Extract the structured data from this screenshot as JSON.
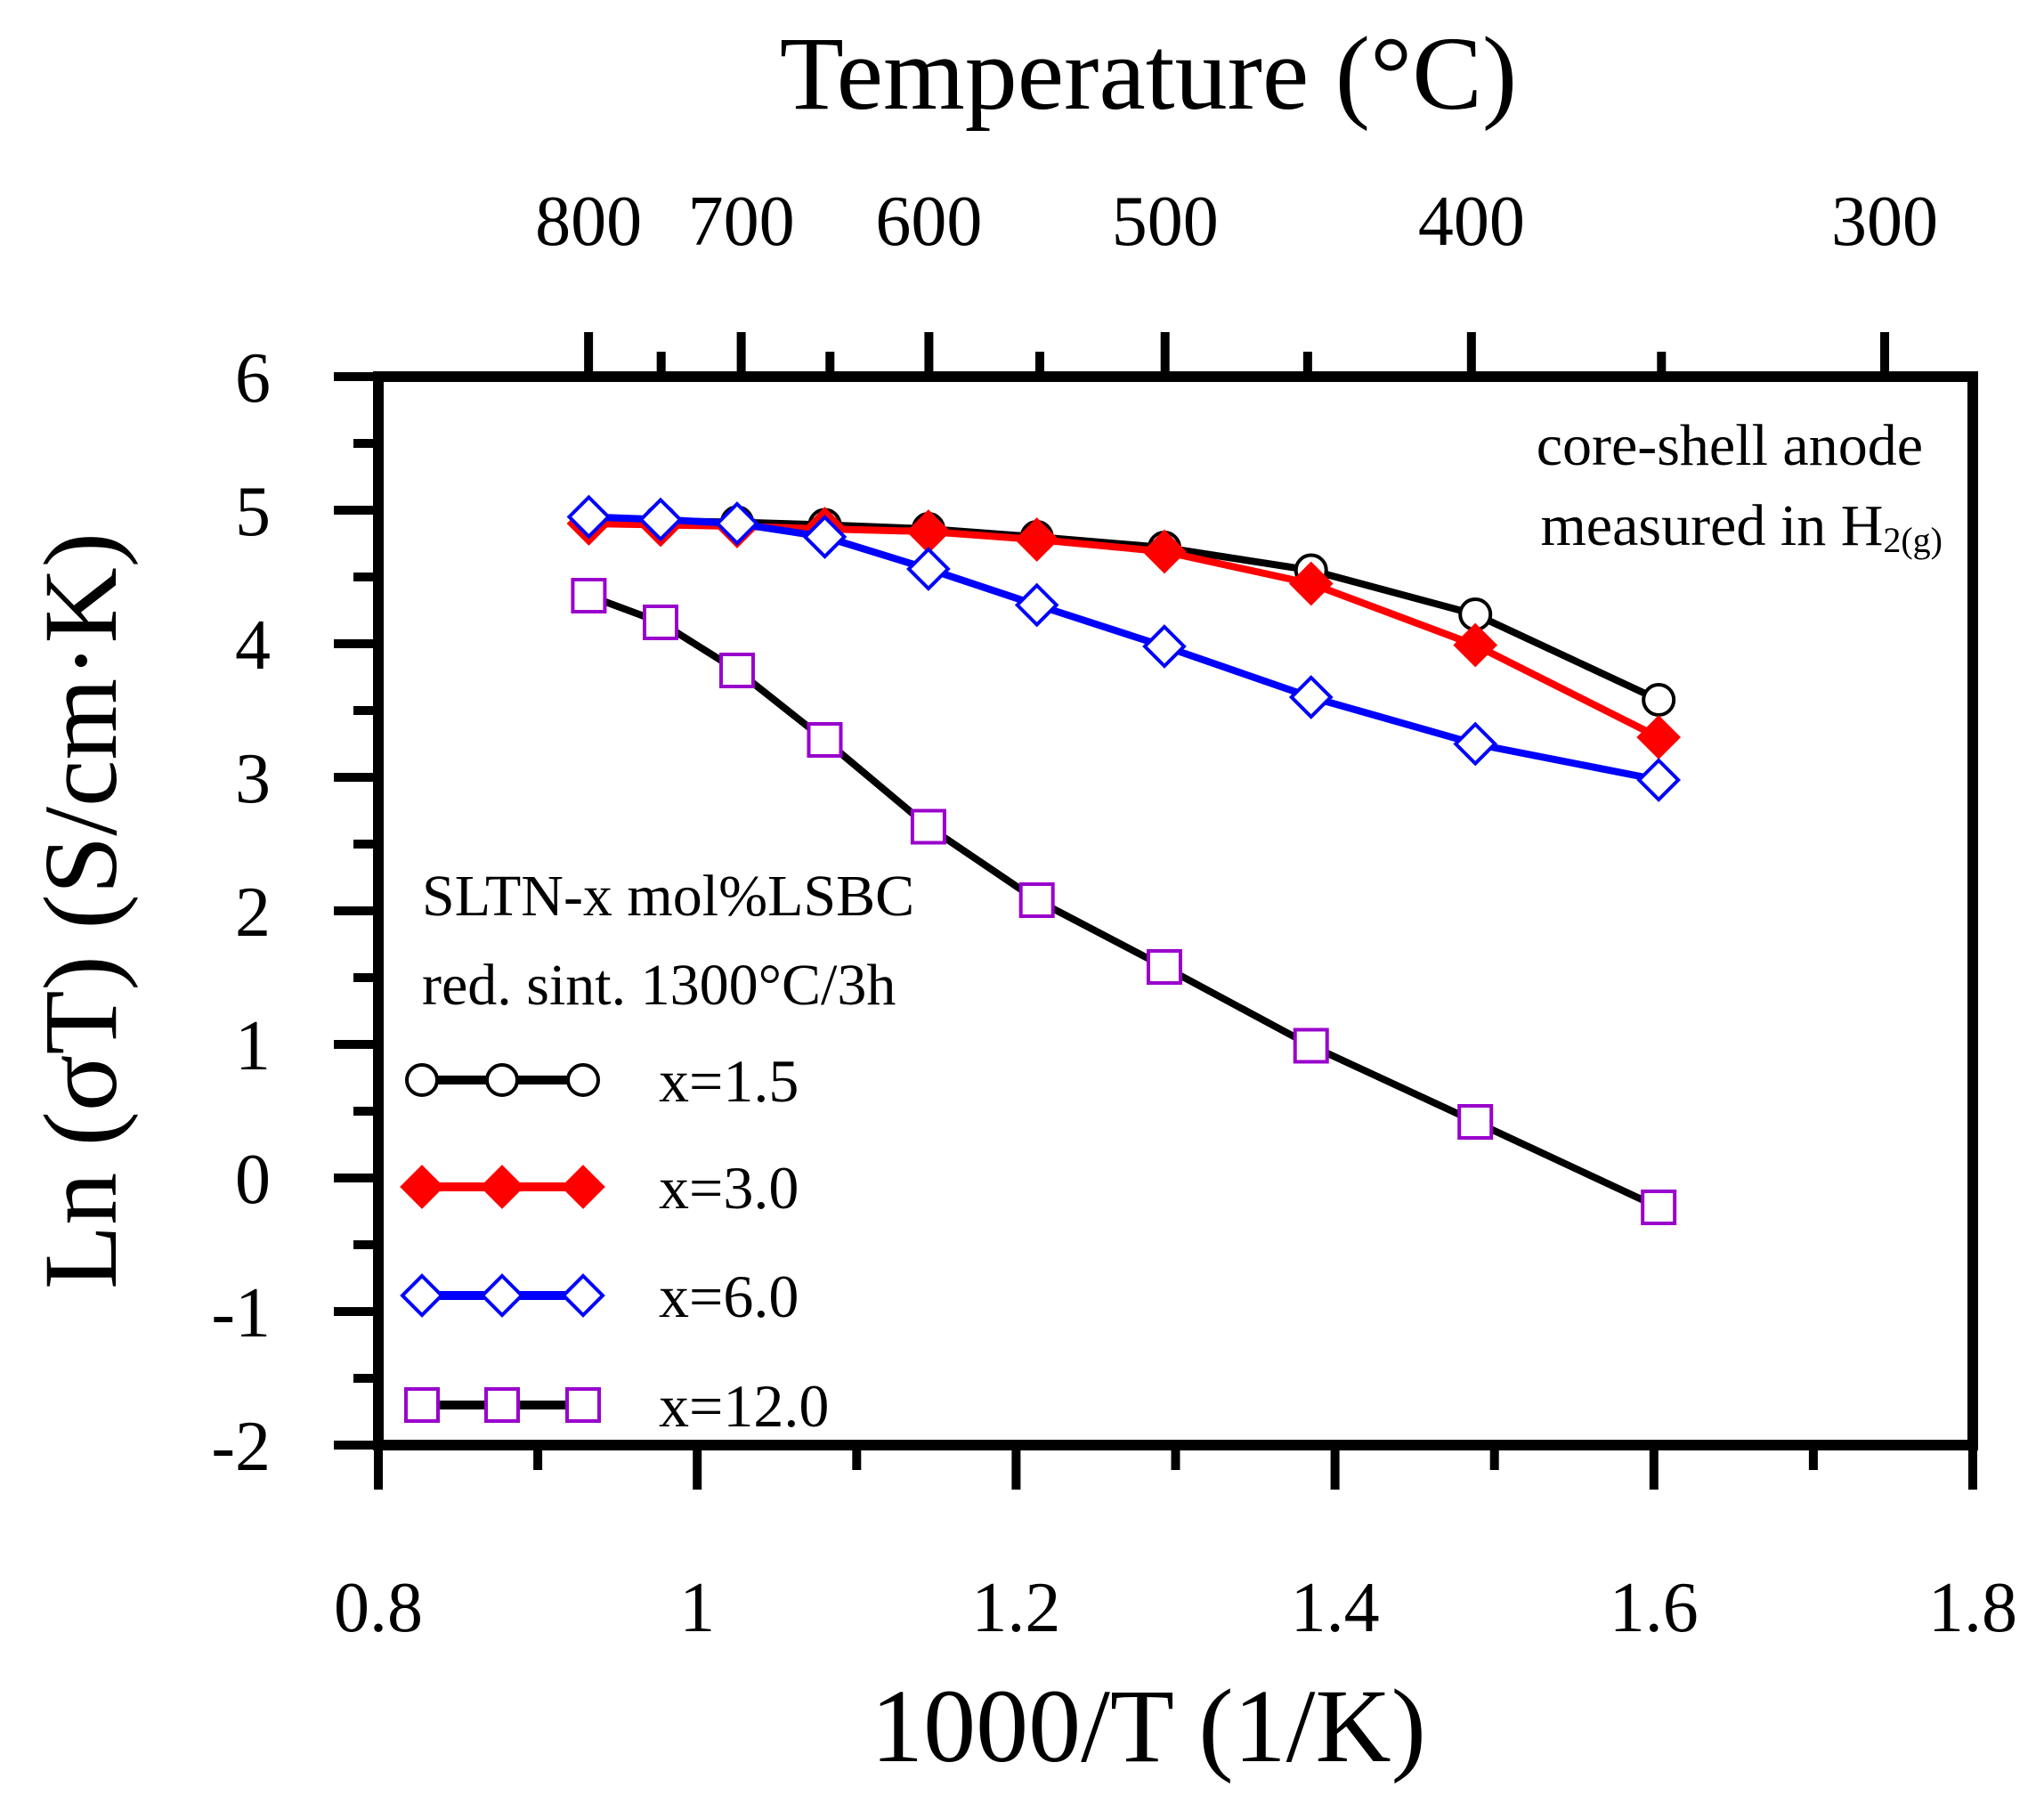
{
  "chart_data": {
    "type": "line",
    "top_axis_title": "Temperature (°C)",
    "top_ticks": [
      {
        "value": 800,
        "label": "800"
      },
      {
        "value": 700,
        "label": "700"
      },
      {
        "value": 600,
        "label": "600"
      },
      {
        "value": 500,
        "label": "500"
      },
      {
        "value": 400,
        "label": "400"
      },
      {
        "value": 300,
        "label": "300"
      }
    ],
    "top_minor_ticks": [
      750,
      650,
      550,
      450,
      350,
      250
    ],
    "xlabel": "1000/T (1/K)",
    "ylabel": "Ln (σT) (S/cm·K)",
    "xlim": [
      0.8,
      1.8
    ],
    "ylim": [
      -2,
      6
    ],
    "xticks": [
      {
        "value": 0.8,
        "label": "0.8"
      },
      {
        "value": 1.0,
        "label": "1"
      },
      {
        "value": 1.2,
        "label": "1.2"
      },
      {
        "value": 1.4,
        "label": "1.4"
      },
      {
        "value": 1.6,
        "label": "1.6"
      },
      {
        "value": 1.8,
        "label": "1.8"
      }
    ],
    "yticks": [
      {
        "value": -2,
        "label": "-2"
      },
      {
        "value": -1,
        "label": "-1"
      },
      {
        "value": 0,
        "label": "0"
      },
      {
        "value": 1,
        "label": "1"
      },
      {
        "value": 2,
        "label": "2"
      },
      {
        "value": 3,
        "label": "3"
      },
      {
        "value": 4,
        "label": "4"
      },
      {
        "value": 5,
        "label": "5"
      },
      {
        "value": 6,
        "label": "6"
      }
    ],
    "annotation_top_right": {
      "line1": "core-shell anode",
      "line2_text": "measured in H",
      "line2_sub": "2(g)"
    },
    "legend_title": {
      "line1": "SLTN-x mol%LSBC",
      "line2": "red. sint. 1300°C/3h"
    },
    "series": [
      {
        "name": "x=1.5",
        "line_color": "#000000",
        "marker": "circle-open",
        "marker_color": "#000000",
        "x": [
          0.932,
          0.977,
          1.025,
          1.08,
          1.145,
          1.213,
          1.293,
          1.385,
          1.488,
          1.603
        ],
        "y": [
          4.92,
          4.92,
          4.91,
          4.89,
          4.86,
          4.8,
          4.72,
          4.55,
          4.22,
          3.58
        ]
      },
      {
        "name": "x=3.0",
        "line_color": "#ff0000",
        "marker": "diamond-filled",
        "marker_color": "#ff0000",
        "x": [
          0.932,
          0.977,
          1.025,
          1.08,
          1.145,
          1.213,
          1.293,
          1.385,
          1.488,
          1.603
        ],
        "y": [
          4.9,
          4.89,
          4.88,
          4.86,
          4.84,
          4.78,
          4.69,
          4.45,
          3.99,
          3.3
        ]
      },
      {
        "name": "x=6.0",
        "line_color": "#0000ff",
        "marker": "diamond-open",
        "marker_color": "#0000ff",
        "x": [
          0.932,
          0.977,
          1.025,
          1.08,
          1.145,
          1.213,
          1.293,
          1.385,
          1.488,
          1.603
        ],
        "y": [
          4.95,
          4.93,
          4.9,
          4.8,
          4.56,
          4.29,
          3.98,
          3.6,
          3.25,
          2.98
        ]
      },
      {
        "name": "x=12.0",
        "line_color": "#000000",
        "marker": "square-open",
        "marker_color": "#9900cc",
        "x": [
          0.932,
          0.977,
          1.025,
          1.08,
          1.145,
          1.213,
          1.293,
          1.385,
          1.488,
          1.603
        ],
        "y": [
          4.36,
          4.16,
          3.8,
          3.28,
          2.63,
          2.08,
          1.58,
          0.99,
          0.42,
          -0.22
        ]
      }
    ]
  }
}
